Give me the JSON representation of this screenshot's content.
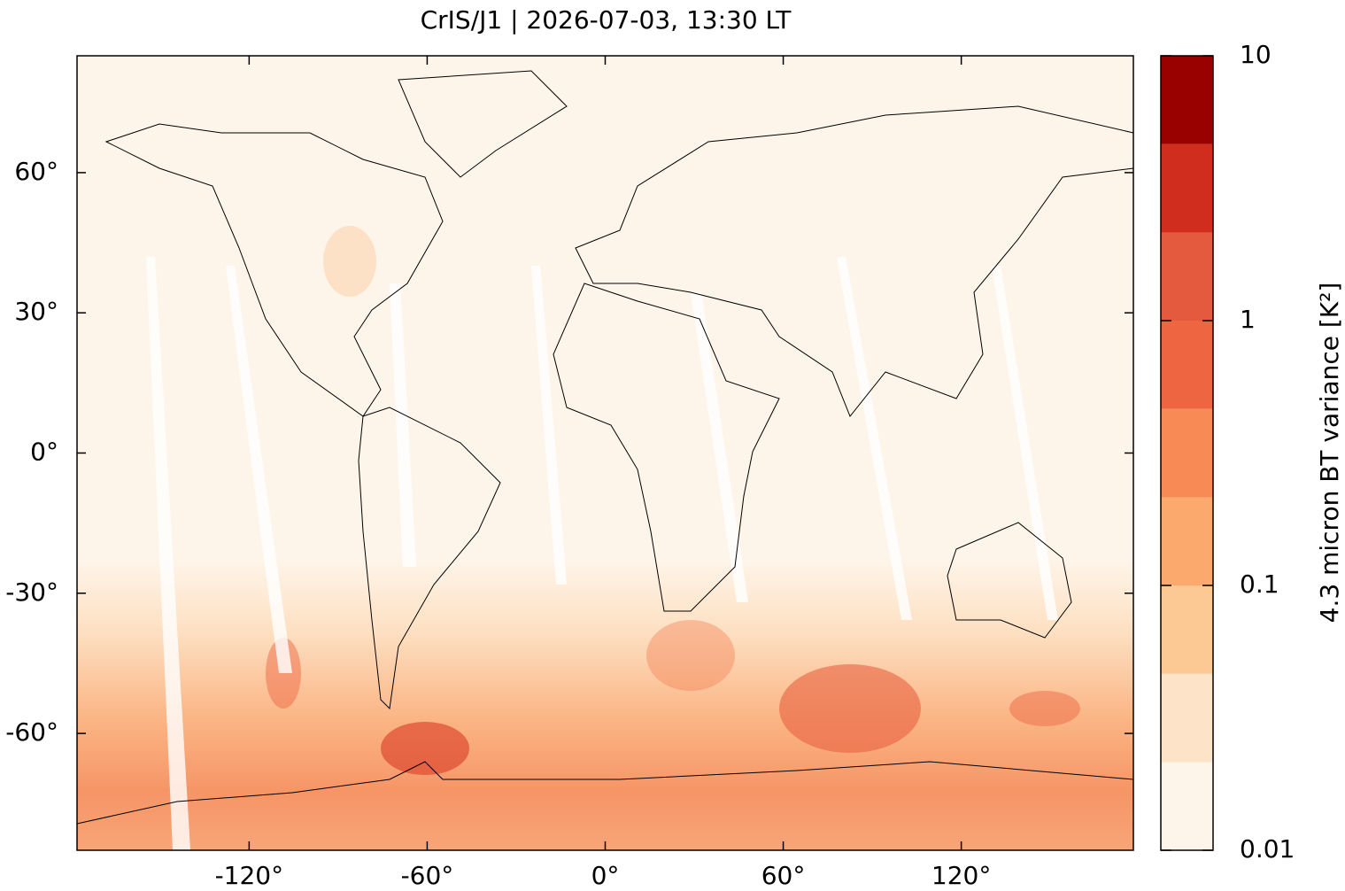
{
  "chart_data": {
    "type": "map",
    "title": "CrIS/J1 | 2026-07-03, 13:30 LT",
    "xlim": [
      -178,
      178
    ],
    "ylim": [
      -85,
      85
    ],
    "xticks": [
      {
        "value": -120,
        "label": "-120°"
      },
      {
        "value": -60,
        "label": "-60°"
      },
      {
        "value": 0,
        "label": "0°"
      },
      {
        "value": 60,
        "label": "60°"
      },
      {
        "value": 120,
        "label": "120°"
      }
    ],
    "yticks": [
      {
        "value": -60,
        "label": "-60°"
      },
      {
        "value": -30,
        "label": "-30°"
      },
      {
        "value": 0,
        "label": "0°"
      },
      {
        "value": 30,
        "label": "30°"
      },
      {
        "value": 60,
        "label": "60°"
      }
    ],
    "colorbar": {
      "label": "4.3 micron BT variance [K²]",
      "scale": "log",
      "lim": [
        0.01,
        10
      ],
      "ticks": [
        0.01,
        0.1,
        1,
        10
      ],
      "levels": [
        0.01,
        0.0215,
        0.0464,
        0.1,
        0.215,
        0.464,
        1,
        2.15,
        4.64,
        10
      ],
      "colors": [
        "#fef5ea",
        "#fde3c8",
        "#fcc994",
        "#fba96c",
        "#f88a55",
        "#ee6641",
        "#e45a3f",
        "#d12d1f",
        "#990000"
      ]
    }
  }
}
